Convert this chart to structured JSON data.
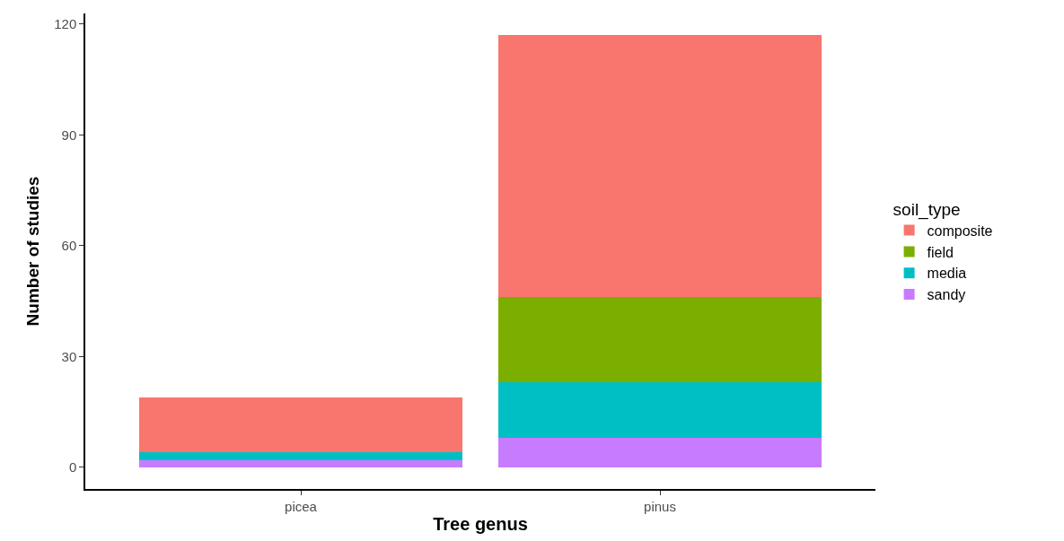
{
  "chart_data": {
    "type": "bar",
    "stacked": true,
    "xlabel": "Tree genus",
    "ylabel": "Number of studies",
    "legend_title": "soil_type",
    "legend": "right",
    "categories": [
      "picea",
      "pinus"
    ],
    "series": [
      {
        "name": "sandy",
        "color": "#c77cff",
        "values": [
          2,
          8
        ]
      },
      {
        "name": "media",
        "color": "#00bfc4",
        "values": [
          2,
          15
        ]
      },
      {
        "name": "field",
        "color": "#7cae00",
        "values": [
          0,
          23
        ]
      },
      {
        "name": "composite",
        "color": "#f8766d",
        "values": [
          15,
          71
        ]
      }
    ],
    "ylim": [
      -5.85,
      122.85
    ],
    "yticks": [
      0,
      30,
      60,
      90,
      120
    ]
  }
}
